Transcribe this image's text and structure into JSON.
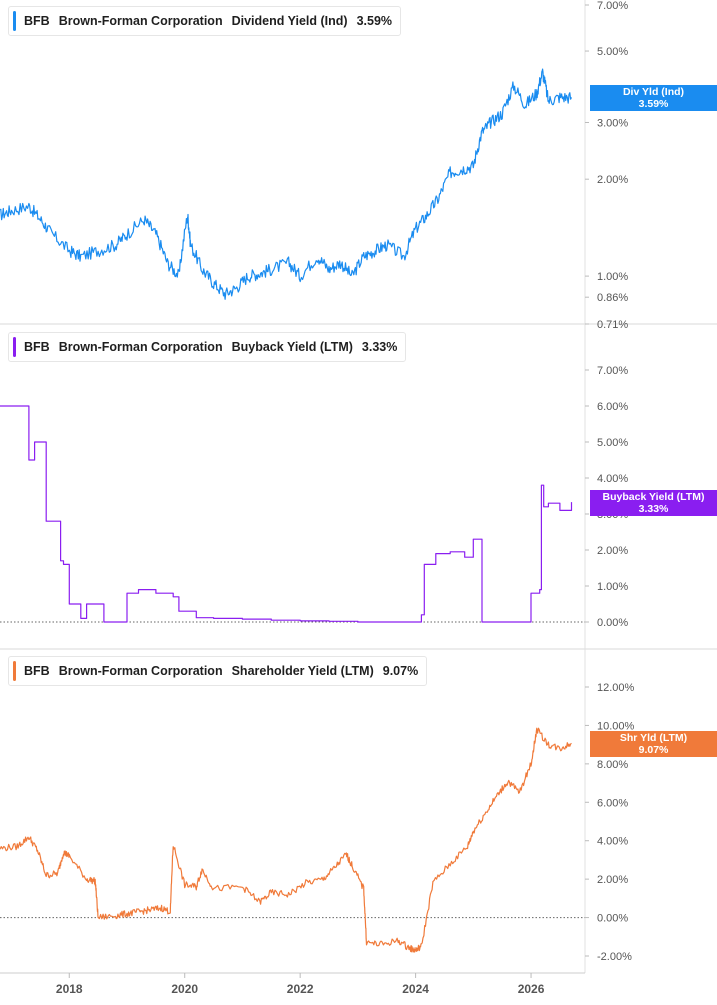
{
  "colors": {
    "dividend": "#1a8cf0",
    "buyback": "#8a1ef0",
    "shareholder": "#f07a3a",
    "grid_divider": "#d8d8d8",
    "axis_text": "#555555",
    "zero_line": "#666666"
  },
  "panels": [
    {
      "ticker": "BFB",
      "company": "Brown-Forman Corporation",
      "metric": "Dividend Yield (Ind)",
      "current": "3.59%",
      "badge_line1": "Div Yld (Ind)",
      "badge_line2": "3.59%",
      "y_ticks": [
        "7.00%",
        "5.00%",
        "3.00%",
        "2.00%",
        "1.00%",
        "0.86%",
        "0.71%"
      ]
    },
    {
      "ticker": "BFB",
      "company": "Brown-Forman Corporation",
      "metric": "Buyback Yield (LTM)",
      "current": "3.33%",
      "badge_line1": "Buyback Yield (LTM)",
      "badge_line2": "3.33%",
      "y_ticks": [
        "7.00%",
        "6.00%",
        "5.00%",
        "4.00%",
        "3.00%",
        "2.00%",
        "1.00%",
        "0.00%"
      ]
    },
    {
      "ticker": "BFB",
      "company": "Brown-Forman Corporation",
      "metric": "Shareholder Yield (LTM)",
      "current": "9.07%",
      "badge_line1": "Shr Yld (LTM)",
      "badge_line2": "9.07%",
      "y_ticks": [
        "12.00%",
        "10.00%",
        "8.00%",
        "6.00%",
        "4.00%",
        "2.00%",
        "0.00%",
        "-2.00%"
      ]
    }
  ],
  "x_ticks": [
    "2018",
    "2020",
    "2022",
    "2024",
    "2026"
  ],
  "chart_data": [
    {
      "type": "line",
      "title": "Dividend Yield (Ind)",
      "y_scale": "log",
      "ylim": [
        0.71,
        7.0
      ],
      "series": [
        {
          "name": "Dividend Yield (Ind)",
          "color": "#1a8cf0",
          "x": [
            2016.8,
            2017.0,
            2017.3,
            2017.5,
            2017.7,
            2018.0,
            2018.2,
            2018.5,
            2018.8,
            2019.0,
            2019.3,
            2019.5,
            2019.7,
            2019.9,
            2020.05,
            2020.1,
            2020.3,
            2020.5,
            2020.7,
            2020.9,
            2021.1,
            2021.3,
            2021.5,
            2021.8,
            2022.0,
            2022.3,
            2022.5,
            2022.7,
            2022.9,
            2023.1,
            2023.3,
            2023.5,
            2023.8,
            2024.0,
            2024.2,
            2024.4,
            2024.6,
            2024.8,
            2025.0,
            2025.15,
            2025.3,
            2025.5,
            2025.7,
            2025.9,
            2026.1,
            2026.2,
            2026.3,
            2026.5,
            2026.7
          ],
          "values": [
            1.55,
            1.6,
            1.65,
            1.5,
            1.35,
            1.2,
            1.15,
            1.2,
            1.25,
            1.35,
            1.5,
            1.35,
            1.1,
            1.0,
            1.55,
            1.25,
            1.05,
            0.95,
            0.88,
            0.92,
            1.0,
            1.02,
            1.05,
            1.1,
            1.0,
            1.15,
            1.05,
            1.1,
            1.0,
            1.15,
            1.2,
            1.25,
            1.15,
            1.4,
            1.55,
            1.75,
            2.1,
            2.15,
            2.2,
            2.8,
            3.0,
            3.2,
            3.9,
            3.4,
            3.7,
            4.3,
            3.5,
            3.6,
            3.59
          ]
        }
      ]
    },
    {
      "type": "line",
      "title": "Buyback Yield (LTM)",
      "ylim": [
        0.0,
        7.0
      ],
      "series": [
        {
          "name": "Buyback Yield (LTM)",
          "color": "#8a1ef0",
          "x": [
            2016.8,
            2017.1,
            2017.3,
            2017.4,
            2017.6,
            2017.65,
            2017.85,
            2017.9,
            2018.0,
            2018.05,
            2018.2,
            2018.3,
            2018.6,
            2018.9,
            2019.0,
            2019.2,
            2019.5,
            2019.8,
            2019.9,
            2020.2,
            2020.5,
            2021.0,
            2021.5,
            2022.0,
            2022.5,
            2023.0,
            2023.5,
            2023.9,
            2024.1,
            2024.15,
            2024.35,
            2024.6,
            2024.85,
            2025.0,
            2025.1,
            2025.15,
            2025.2,
            2025.5,
            2025.9,
            2026.0,
            2026.15,
            2026.18,
            2026.22,
            2026.3,
            2026.5,
            2026.7
          ],
          "values": [
            6.0,
            6.0,
            4.5,
            5.0,
            2.8,
            2.8,
            1.7,
            1.6,
            0.5,
            0.5,
            0.1,
            0.5,
            0.0,
            0.0,
            0.8,
            0.9,
            0.8,
            0.7,
            0.3,
            0.12,
            0.1,
            0.08,
            0.05,
            0.03,
            0.02,
            0.0,
            0.0,
            0.0,
            0.2,
            1.6,
            1.9,
            1.95,
            1.8,
            2.3,
            2.3,
            0.0,
            0.0,
            0.0,
            0.0,
            0.8,
            0.9,
            3.8,
            3.2,
            3.3,
            3.1,
            3.33
          ]
        }
      ]
    },
    {
      "type": "line",
      "title": "Shareholder Yield (LTM)",
      "ylim": [
        -2.0,
        12.0
      ],
      "series": [
        {
          "name": "Shareholder Yield (LTM)",
          "color": "#f07a3a",
          "x": [
            2016.8,
            2017.1,
            2017.3,
            2017.45,
            2017.6,
            2017.8,
            2017.9,
            2018.0,
            2018.3,
            2018.45,
            2018.5,
            2018.8,
            2019.0,
            2019.2,
            2019.4,
            2019.6,
            2019.75,
            2019.8,
            2020.0,
            2020.2,
            2020.3,
            2020.5,
            2021.0,
            2021.3,
            2021.5,
            2021.8,
            2022.1,
            2022.4,
            2022.6,
            2022.8,
            2022.9,
            2023.1,
            2023.15,
            2023.4,
            2023.7,
            2023.9,
            2024.0,
            2024.1,
            2024.3,
            2024.6,
            2024.9,
            2025.0,
            2025.2,
            2025.4,
            2025.6,
            2025.8,
            2026.0,
            2026.1,
            2026.3,
            2026.5,
            2026.7
          ],
          "values": [
            3.6,
            3.7,
            4.2,
            3.5,
            2.2,
            2.3,
            3.4,
            3.2,
            2.0,
            1.9,
            0.0,
            0.1,
            0.2,
            0.3,
            0.4,
            0.5,
            0.3,
            3.8,
            1.7,
            1.6,
            2.5,
            1.5,
            1.6,
            0.8,
            1.3,
            1.2,
            1.8,
            2.0,
            2.6,
            3.3,
            2.7,
            1.5,
            -1.3,
            -1.4,
            -1.2,
            -1.6,
            -1.7,
            -1.5,
            1.8,
            2.8,
            3.7,
            4.5,
            5.4,
            6.3,
            7.1,
            6.5,
            8.0,
            9.8,
            9.0,
            8.8,
            9.07
          ]
        }
      ]
    }
  ]
}
